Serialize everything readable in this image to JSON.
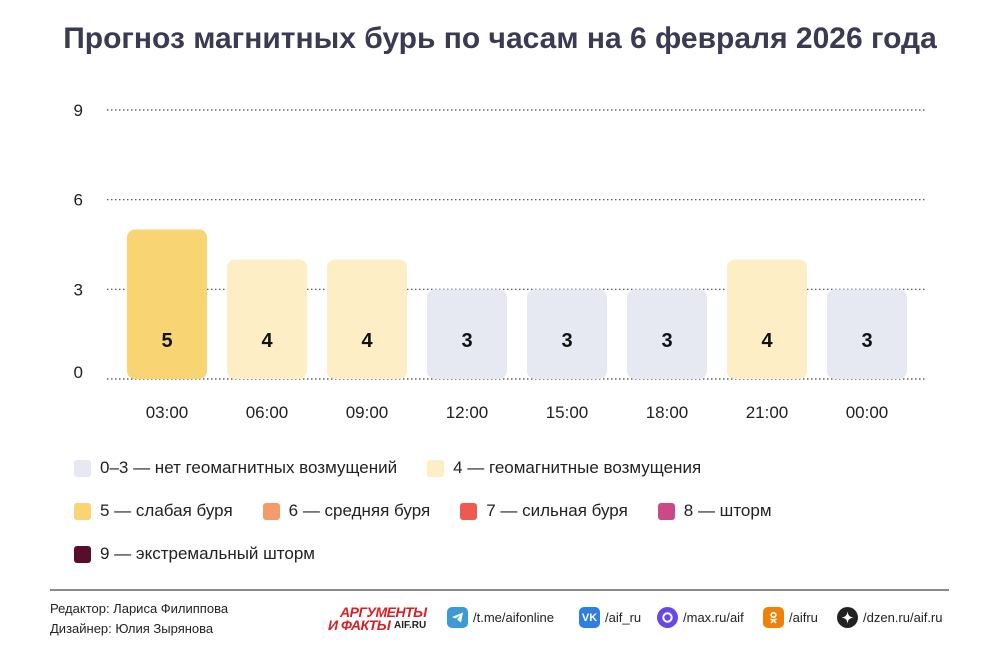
{
  "title": "Прогноз магнитных бурь по часам на 6 февраля 2026 года",
  "chart_data": {
    "type": "bar",
    "categories": [
      "03:00",
      "06:00",
      "09:00",
      "12:00",
      "15:00",
      "18:00",
      "21:00",
      "00:00"
    ],
    "values": [
      5,
      4,
      4,
      3,
      3,
      3,
      4,
      3
    ],
    "ylim": [
      0,
      9
    ],
    "yticks": [
      0,
      3,
      6,
      9
    ],
    "grid": "dotted",
    "legend_position": "bottom",
    "level_colors": {
      "3": "#e6e8f2",
      "4": "#fdeec6",
      "5": "#f8d473"
    }
  },
  "legend": [
    {
      "label": "0–3 — нет геомагнитных возмущений",
      "color": "#e6e8f2"
    },
    {
      "label": "4 — геомагнитные возмущения",
      "color": "#fdeec6"
    },
    {
      "label": "5 — слабая буря",
      "color": "#f8d473"
    },
    {
      "label": "6 — средняя буря",
      "color": "#f59a6b"
    },
    {
      "label": "7 — сильная буря",
      "color": "#ee5a4f"
    },
    {
      "label": "8 — шторм",
      "color": "#c94a86"
    },
    {
      "label": "9 — экстремальный шторм",
      "color": "#5a0d2b"
    }
  ],
  "credits": {
    "editor": "Редактор: Лариса Филиппова",
    "designer": "Дизайнер: Юлия Зырянова"
  },
  "logo": {
    "line1": "АРГУМЕНТЫ",
    "line2": "И ФАКТЫ",
    "domain": "AIF.RU"
  },
  "social": [
    {
      "icon": "telegram-icon",
      "label": "/t.me/aifonline",
      "color": "#3d9ad6"
    },
    {
      "icon": "vk-icon",
      "label": "/aif_ru",
      "color": "#2f7fe0"
    },
    {
      "icon": "max-icon",
      "label": "/max.ru/aif",
      "color": "#6a48e6"
    },
    {
      "icon": "odnoklassniki-icon",
      "label": "/aifru",
      "color": "#ee8208"
    },
    {
      "icon": "dzen-icon",
      "label": "/dzen.ru/aif.ru",
      "color": "#222222"
    }
  ]
}
